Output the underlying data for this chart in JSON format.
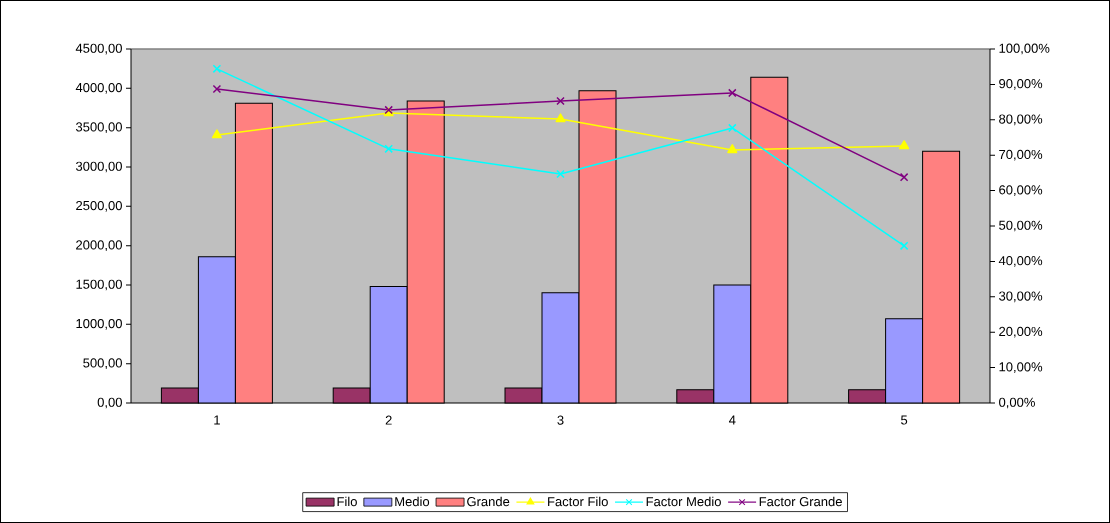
{
  "chart_data": {
    "type": "bar",
    "categories": [
      "1",
      "2",
      "3",
      "4",
      "5"
    ],
    "series": [
      {
        "name": "Filo",
        "color": "#993366",
        "values": [
          190,
          190,
          190,
          170,
          170
        ]
      },
      {
        "name": "Medio",
        "color": "#9999ff",
        "values": [
          1860,
          1480,
          1400,
          1500,
          1070
        ]
      },
      {
        "name": "Grande",
        "color": "#ff8080",
        "values": [
          3810,
          3840,
          3970,
          4140,
          3200
        ]
      },
      {
        "name": "Factor Filo",
        "type": "line",
        "axis": "y2",
        "marker": "triangle",
        "color": "#ffff00",
        "values": [
          75.7,
          81.9,
          80.2,
          71.5,
          72.6
        ]
      },
      {
        "name": "Factor Medio",
        "type": "line",
        "axis": "y2",
        "marker": "cross",
        "color": "#00ffff",
        "values": [
          94.4,
          71.8,
          64.7,
          77.7,
          44.4
        ]
      },
      {
        "name": "Factor Grande",
        "type": "line",
        "axis": "y2",
        "marker": "cross",
        "color": "#800080",
        "values": [
          88.7,
          82.8,
          85.3,
          87.6,
          63.8
        ]
      }
    ],
    "ylim": [
      0,
      4500
    ],
    "yticks": [
      {
        "value": 0,
        "label": "0,00"
      },
      {
        "value": 500,
        "label": "500,00"
      },
      {
        "value": 1000,
        "label": "1000,00"
      },
      {
        "value": 1500,
        "label": "1500,00"
      },
      {
        "value": 2000,
        "label": "2000,00"
      },
      {
        "value": 2500,
        "label": "2500,00"
      },
      {
        "value": 3000,
        "label": "3000,00"
      },
      {
        "value": 3500,
        "label": "3500,00"
      },
      {
        "value": 4000,
        "label": "4000,00"
      },
      {
        "value": 4500,
        "label": "4500,00"
      }
    ],
    "y2lim": [
      0,
      100
    ],
    "y2ticks": [
      {
        "value": 0,
        "label": "0,00%"
      },
      {
        "value": 10,
        "label": "10,00%"
      },
      {
        "value": 20,
        "label": "20,00%"
      },
      {
        "value": 30,
        "label": "30,00%"
      },
      {
        "value": 40,
        "label": "40,00%"
      },
      {
        "value": 50,
        "label": "50,00%"
      },
      {
        "value": 60,
        "label": "60,00%"
      },
      {
        "value": 70,
        "label": "70,00%"
      },
      {
        "value": 80,
        "label": "80,00%"
      },
      {
        "value": 90,
        "label": "90,00%"
      },
      {
        "value": 100,
        "label": "100,00%"
      }
    ],
    "grid": false,
    "legend": "bottom"
  }
}
